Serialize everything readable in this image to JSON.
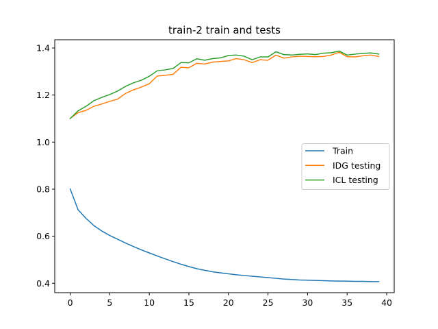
{
  "chart_data": {
    "type": "line",
    "title": "train-2 train and tests",
    "xlabel": "",
    "ylabel": "",
    "xlim": [
      -1.95,
      40.95
    ],
    "ylim": [
      0.36,
      1.435
    ],
    "xticks": [
      0,
      5,
      10,
      15,
      20,
      25,
      30,
      35,
      40
    ],
    "yticks": [
      0.4,
      0.6,
      0.8,
      1.0,
      1.2,
      1.4
    ],
    "grid": false,
    "legend_position": "center-right",
    "x": [
      0,
      1,
      2,
      3,
      4,
      5,
      6,
      7,
      8,
      9,
      10,
      11,
      12,
      13,
      14,
      15,
      16,
      17,
      18,
      19,
      20,
      21,
      22,
      23,
      24,
      25,
      26,
      27,
      28,
      29,
      30,
      31,
      32,
      33,
      34,
      35,
      36,
      37,
      38,
      39
    ],
    "series": [
      {
        "name": "Train",
        "color": "#1f77b4",
        "values": [
          0.801,
          0.712,
          0.676,
          0.645,
          0.622,
          0.603,
          0.587,
          0.571,
          0.556,
          0.542,
          0.529,
          0.516,
          0.504,
          0.492,
          0.481,
          0.471,
          0.462,
          0.455,
          0.449,
          0.444,
          0.44,
          0.436,
          0.433,
          0.43,
          0.427,
          0.424,
          0.421,
          0.418,
          0.416,
          0.414,
          0.413,
          0.412,
          0.411,
          0.41,
          0.409,
          0.409,
          0.408,
          0.408,
          0.407,
          0.407
        ]
      },
      {
        "name": "IDG testing",
        "color": "#ff7f0e",
        "values": [
          1.101,
          1.125,
          1.135,
          1.152,
          1.162,
          1.173,
          1.183,
          1.207,
          1.222,
          1.234,
          1.248,
          1.281,
          1.284,
          1.288,
          1.318,
          1.316,
          1.335,
          1.332,
          1.34,
          1.343,
          1.345,
          1.355,
          1.35,
          1.338,
          1.35,
          1.348,
          1.37,
          1.357,
          1.362,
          1.365,
          1.364,
          1.363,
          1.364,
          1.37,
          1.382,
          1.363,
          1.362,
          1.367,
          1.37,
          1.364
        ]
      },
      {
        "name": "ICL testing",
        "color": "#2ca02c",
        "values": [
          1.1,
          1.133,
          1.152,
          1.176,
          1.19,
          1.202,
          1.217,
          1.237,
          1.252,
          1.263,
          1.28,
          1.303,
          1.307,
          1.313,
          1.338,
          1.337,
          1.354,
          1.348,
          1.355,
          1.358,
          1.368,
          1.37,
          1.365,
          1.35,
          1.362,
          1.362,
          1.384,
          1.372,
          1.37,
          1.373,
          1.375,
          1.372,
          1.378,
          1.38,
          1.387,
          1.37,
          1.374,
          1.377,
          1.379,
          1.374
        ]
      }
    ]
  }
}
